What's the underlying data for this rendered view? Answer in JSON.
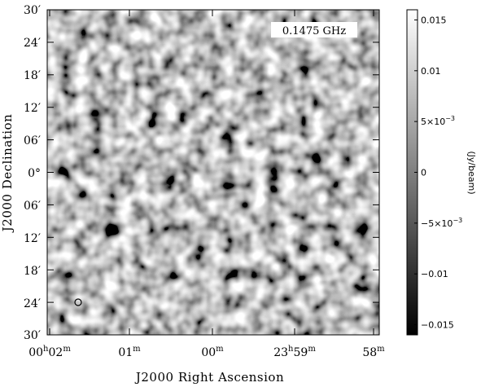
{
  "figure": {
    "frequency_label": "0.1475 GHz",
    "x_axis_title": "J2000 Right Ascension",
    "y_axis_title": "J2000 Declination",
    "x_ticks": [
      {
        "h": "00",
        "hs": "h",
        "m": "02",
        "ms": "m"
      },
      {
        "h": "",
        "hs": "",
        "m": "01",
        "ms": "m"
      },
      {
        "h": "",
        "hs": "",
        "m": "00",
        "ms": "m"
      },
      {
        "h": "23",
        "hs": "h",
        "m": "59",
        "ms": "m"
      },
      {
        "h": "",
        "hs": "",
        "m": "58",
        "ms": "m"
      }
    ],
    "y_ticks": [
      "30′",
      "24′",
      "18′",
      "12′",
      "06′",
      "0°",
      "06′",
      "12′",
      "18′",
      "24′",
      "30′"
    ],
    "colorbar": {
      "unit_label": "(Jy/beam)",
      "range": [
        -0.016,
        0.016
      ],
      "ticks": [
        {
          "value": 0.015,
          "label": "0.015",
          "exp": ""
        },
        {
          "value": 0.01,
          "label": "0.01",
          "exp": ""
        },
        {
          "value": 0.005,
          "label": "5×10",
          "exp": "−3"
        },
        {
          "value": 0,
          "label": "0",
          "exp": ""
        },
        {
          "value": -0.005,
          "label": "−5×10",
          "exp": "−3"
        },
        {
          "value": -0.01,
          "label": "−0.01",
          "exp": ""
        },
        {
          "value": -0.015,
          "label": "−0.015",
          "exp": ""
        }
      ]
    },
    "noise_image": {
      "colormap": "grayscale",
      "min_color": "#000000",
      "max_color": "#ffffff"
    }
  }
}
